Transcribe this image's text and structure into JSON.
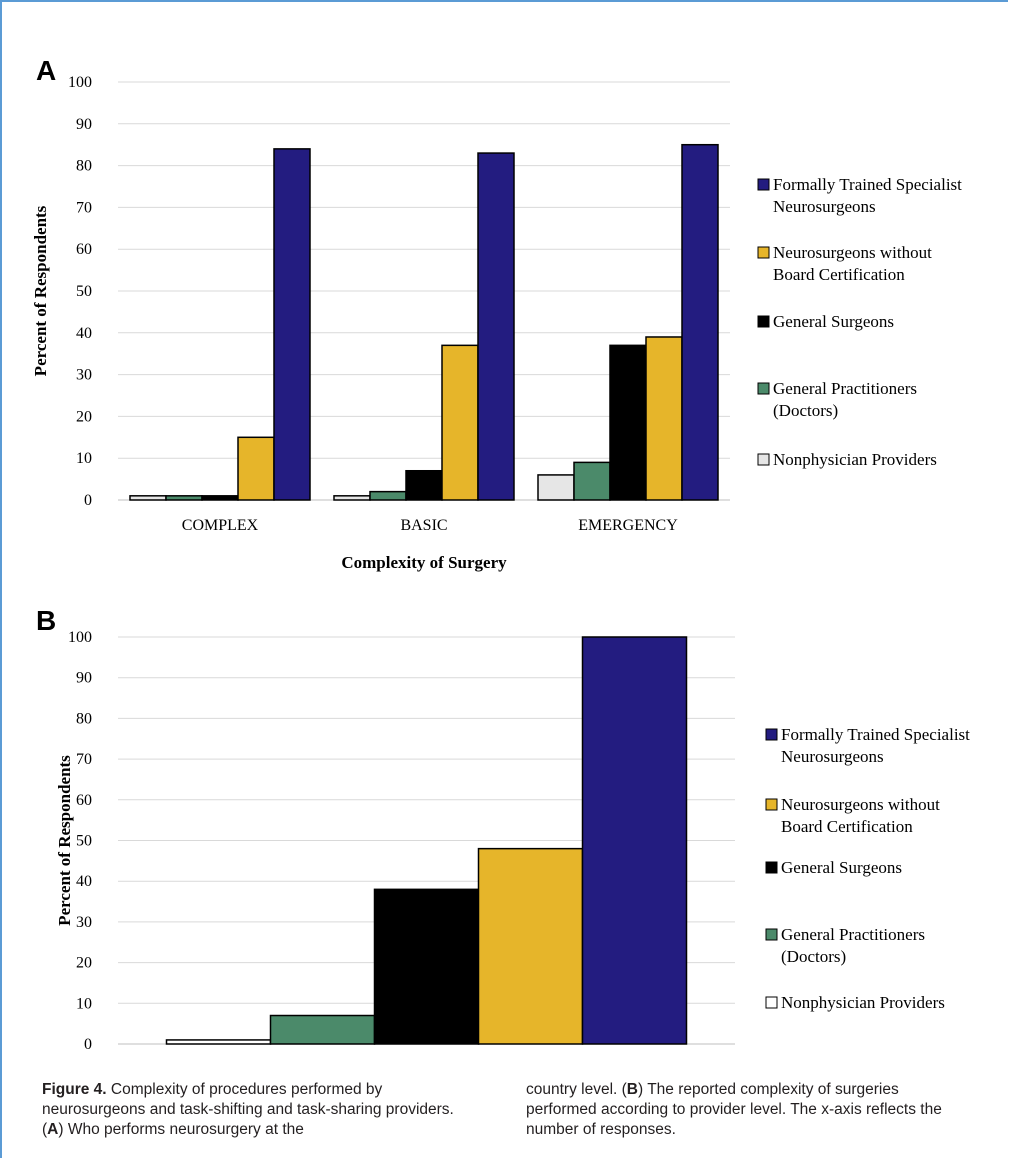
{
  "chart_data": [
    {
      "panel": "A",
      "type": "bar",
      "xlabel": "Complexity of Surgery",
      "ylabel": "Percent of Respondents",
      "ylim": [
        0,
        100
      ],
      "yticks": [
        0,
        10,
        20,
        30,
        40,
        50,
        60,
        70,
        80,
        90,
        100
      ],
      "grid": true,
      "legend_position": "right",
      "categories": [
        "COMPLEX",
        "BASIC",
        "EMERGENCY"
      ],
      "series": [
        {
          "name": "Nonphysician Providers",
          "color": "#e6e6e6",
          "values": [
            1,
            1,
            6
          ]
        },
        {
          "name": "General Practitioners (Doctors)",
          "color": "#4b8a6a",
          "values": [
            1,
            2,
            9
          ]
        },
        {
          "name": "General Surgeons",
          "color": "#000000",
          "values": [
            1,
            7,
            37
          ]
        },
        {
          "name": "Neurosurgeons without Board Certification",
          "color": "#e6b52a",
          "values": [
            15,
            37,
            39
          ]
        },
        {
          "name": "Formally Trained Specialist Neurosurgeons",
          "color": "#231c80",
          "values": [
            84,
            83,
            85
          ]
        }
      ],
      "legend": [
        {
          "lines": [
            "Formally Trained Specialist",
            "Neurosurgeons"
          ],
          "color": "#231c80"
        },
        {
          "lines": [
            "Neurosurgeons without",
            "Board Certification"
          ],
          "color": "#e6b52a"
        },
        {
          "lines": [
            "General Surgeons"
          ],
          "color": "#000000"
        },
        {
          "lines": [
            "General Practitioners",
            "(Doctors)"
          ],
          "color": "#4b8a6a"
        },
        {
          "lines": [
            "Nonphysician Providers"
          ],
          "color": "#e6e6e6"
        }
      ]
    },
    {
      "panel": "B",
      "type": "bar",
      "xlabel": "",
      "ylabel": "Percent of Respondents",
      "ylim": [
        0,
        100
      ],
      "yticks": [
        0,
        10,
        20,
        30,
        40,
        50,
        60,
        70,
        80,
        90,
        100
      ],
      "grid": true,
      "legend_position": "right",
      "categories": [
        ""
      ],
      "series": [
        {
          "name": "Nonphysician Providers",
          "color": "#ffffff",
          "values": [
            1
          ]
        },
        {
          "name": "General Practitioners (Doctors)",
          "color": "#4b8a6a",
          "values": [
            7
          ]
        },
        {
          "name": "General Surgeons",
          "color": "#000000",
          "values": [
            38
          ]
        },
        {
          "name": "Neurosurgeons without Board Certification",
          "color": "#e6b52a",
          "values": [
            48
          ]
        },
        {
          "name": "Formally Trained Specialist Neurosurgeons",
          "color": "#231c80",
          "values": [
            100
          ]
        }
      ],
      "legend": [
        {
          "lines": [
            "Formally Trained Specialist",
            "Neurosurgeons"
          ],
          "color": "#231c80"
        },
        {
          "lines": [
            "Neurosurgeons without",
            "Board Certification"
          ],
          "color": "#e6b52a"
        },
        {
          "lines": [
            "General Surgeons"
          ],
          "color": "#000000"
        },
        {
          "lines": [
            "General Practitioners",
            "(Doctors)"
          ],
          "color": "#4b8a6a"
        },
        {
          "lines": [
            "Nonphysician Providers"
          ],
          "color": "#ffffff"
        }
      ]
    }
  ],
  "caption": {
    "figure_label": "Figure 4.",
    "left_text": " Complexity of procedures performed by neurosurgeons and task-shifting and task-sharing providers. (",
    "left_bold_a": "A",
    "left_tail": ") Who performs neurosurgery at the",
    "right_head": "country level. (",
    "right_bold_b": "B",
    "right_text": ") The reported complexity of surgeries performed according to provider level. The x-axis reflects the number of responses."
  },
  "colors": {
    "frame": "#5b9bd5",
    "grid": "#d9d9d9"
  }
}
